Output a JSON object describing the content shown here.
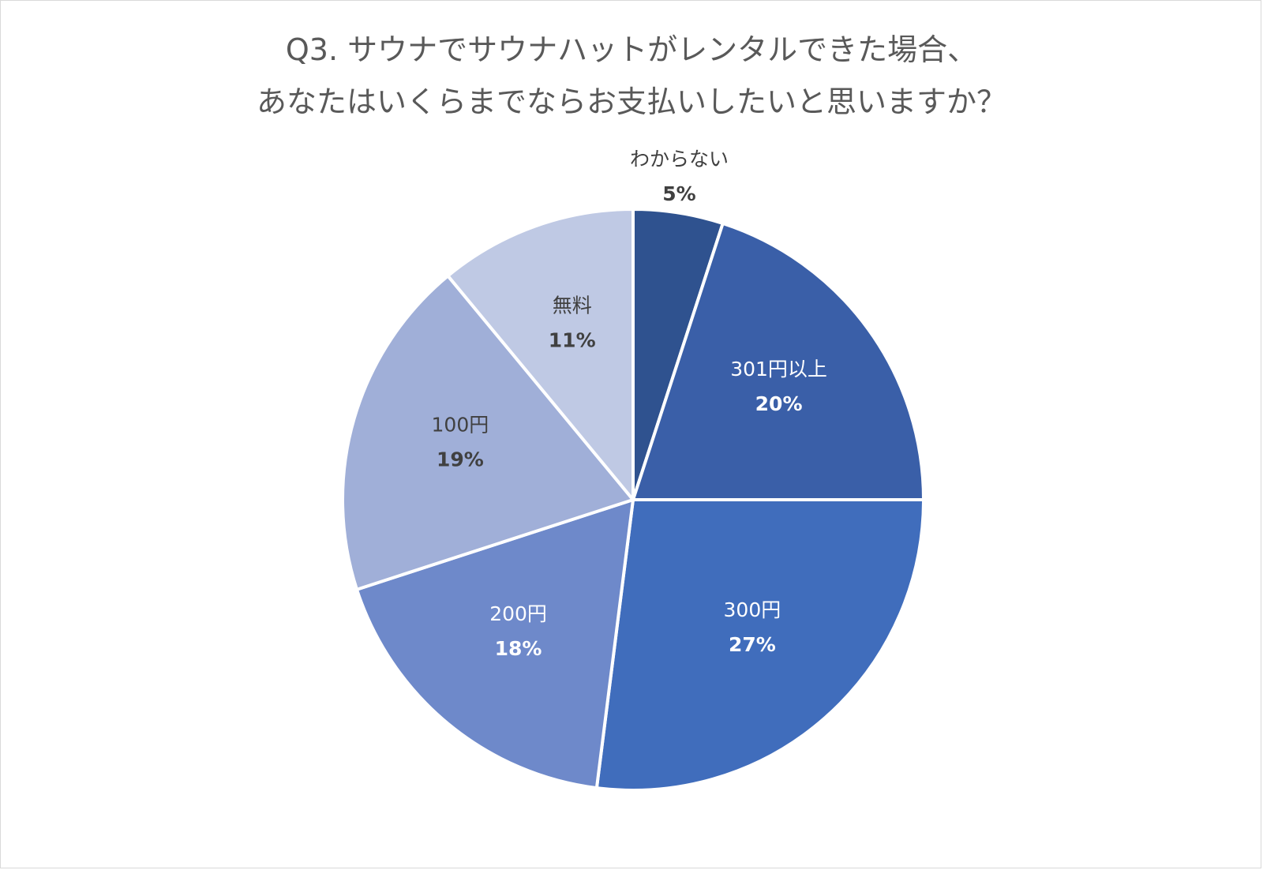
{
  "chart_data": {
    "type": "pie",
    "title": [
      "Q3. サウナでサウナハットがレンタルできた場合、",
      "あなたはいくらまでならお支払いしたいと思いますか？"
    ],
    "slices": [
      {
        "label": "わからない",
        "value": 5,
        "display": "5%",
        "color": "#2F528F",
        "text_color": "#404040",
        "outside": true
      },
      {
        "label": "301円以上",
        "value": 20,
        "display": "20%",
        "color": "#3A5FA8",
        "text_color": "#ffffff"
      },
      {
        "label": "300円",
        "value": 27,
        "display": "27%",
        "color": "#406DBC",
        "text_color": "#ffffff"
      },
      {
        "label": "200円",
        "value": 18,
        "display": "18%",
        "color": "#6E89CA",
        "text_color": "#ffffff"
      },
      {
        "label": "100円",
        "value": 19,
        "display": "19%",
        "color": "#A0AFD8",
        "text_color": "#404040"
      },
      {
        "label": "無料",
        "value": 11,
        "display": "11%",
        "color": "#BFC9E4",
        "text_color": "#404040"
      }
    ],
    "start_angle": "12 o'clock",
    "direction": "clockwise",
    "legend": "none",
    "data_labels": "category name and percentage"
  }
}
